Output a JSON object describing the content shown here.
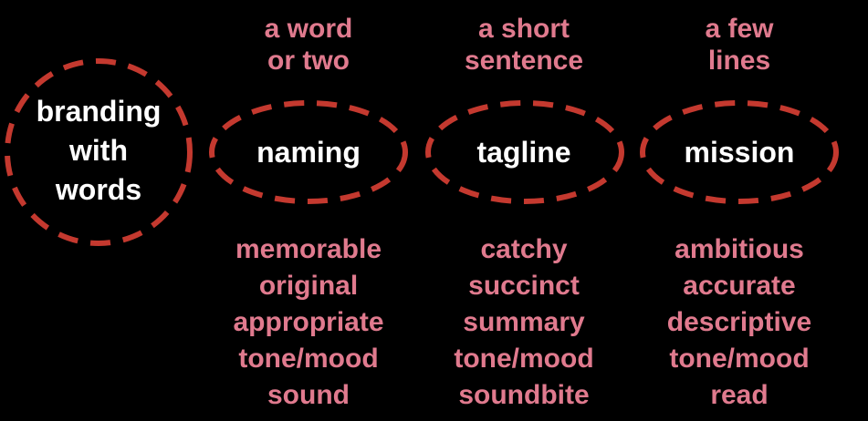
{
  "hub": {
    "lines": [
      "branding",
      "with",
      "words"
    ]
  },
  "columns": [
    {
      "id": "naming",
      "length": [
        "a word",
        "or two"
      ],
      "label": "naming",
      "qualities": [
        "memorable",
        "original",
        "appropriate",
        "tone/mood",
        "sound"
      ]
    },
    {
      "id": "tagline",
      "length": [
        "a short",
        "sentence"
      ],
      "label": "tagline",
      "qualities": [
        "catchy",
        "succinct",
        "summary",
        "tone/mood",
        "soundbite"
      ]
    },
    {
      "id": "mission",
      "length": [
        "a few",
        "lines"
      ],
      "label": "mission",
      "qualities": [
        "ambitious",
        "accurate",
        "descriptive",
        "tone/mood",
        "read"
      ]
    }
  ],
  "colors": {
    "background": "#000000",
    "dashed_outline": "#c4392f",
    "primary_text": "#ffffff",
    "secondary_text": "#e07a8e"
  }
}
